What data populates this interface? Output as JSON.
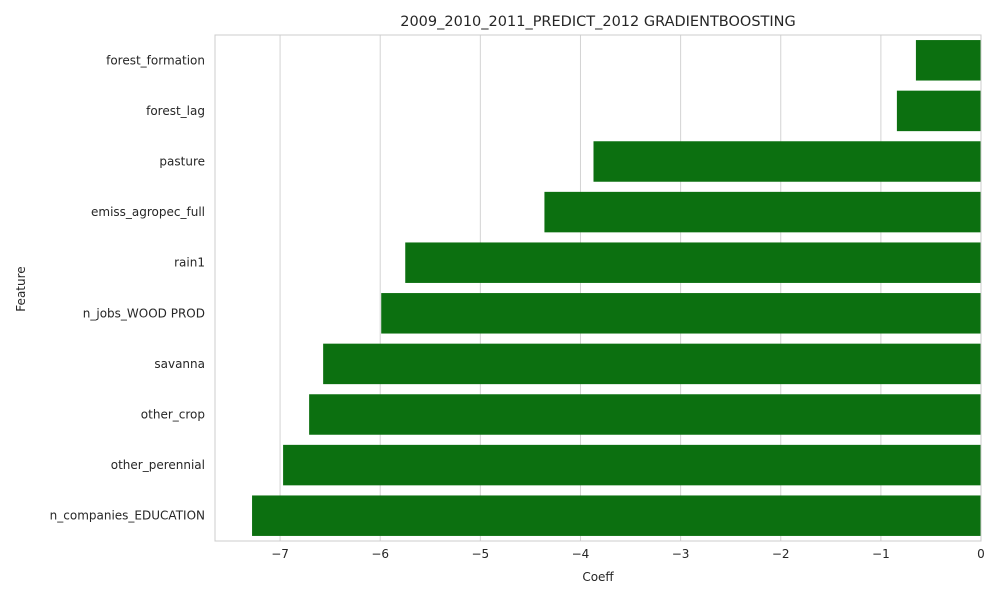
{
  "chart_data": {
    "type": "bar",
    "orientation": "horizontal",
    "title": "2009_2010_2011_PREDICT_2012 GRADIENTBOOSTING",
    "xlabel": "Coeff",
    "ylabel": "Feature",
    "xlim": [
      -7.65,
      0
    ],
    "xticks": [
      -7,
      -6,
      -5,
      -4,
      -3,
      -2,
      -1,
      0
    ],
    "xtick_labels": [
      "−7",
      "−6",
      "−5",
      "−4",
      "−3",
      "−2",
      "−1",
      "0"
    ],
    "grid": "vertical",
    "bar_color": "#0c7010",
    "categories": [
      "forest_formation",
      "forest_lag",
      "pasture",
      "emiss_agropec_full",
      "rain1",
      "n_jobs_WOOD PROD",
      "savanna",
      "other_crop",
      "other_perennial",
      "n_companies_EDUCATION"
    ],
    "values": [
      -0.65,
      -0.84,
      -3.87,
      -4.36,
      -5.75,
      -5.99,
      -6.57,
      -6.71,
      -6.97,
      -7.28
    ]
  }
}
